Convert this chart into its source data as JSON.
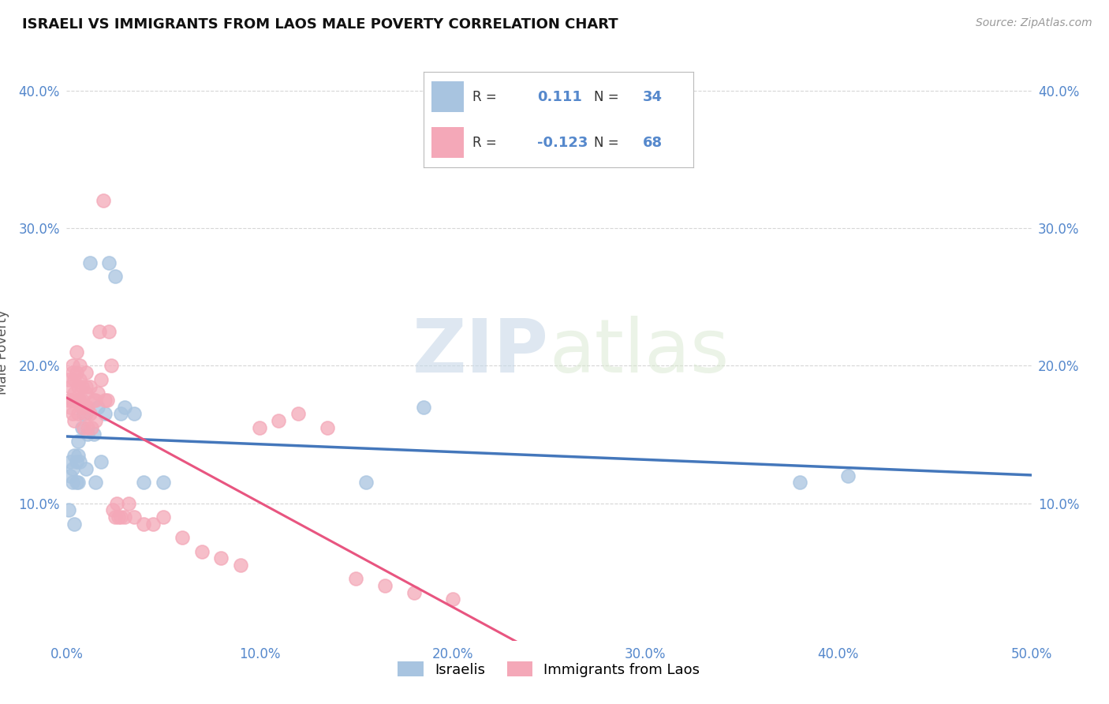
{
  "title": "ISRAELI VS IMMIGRANTS FROM LAOS MALE POVERTY CORRELATION CHART",
  "source": "Source: ZipAtlas.com",
  "ylabel": "Male Poverty",
  "xlim": [
    0.0,
    0.5
  ],
  "ylim": [
    0.0,
    0.42
  ],
  "xtick_labels": [
    "0.0%",
    "10.0%",
    "20.0%",
    "30.0%",
    "40.0%",
    "50.0%"
  ],
  "xtick_values": [
    0.0,
    0.1,
    0.2,
    0.3,
    0.4,
    0.5
  ],
  "ytick_labels": [
    "10.0%",
    "20.0%",
    "30.0%",
    "40.0%"
  ],
  "ytick_values": [
    0.1,
    0.2,
    0.3,
    0.4
  ],
  "legend_label1": "Israelis",
  "legend_label2": "Immigrants from Laos",
  "R1": 0.111,
  "N1": 34,
  "R2": -0.123,
  "N2": 68,
  "color_blue": "#A8C4E0",
  "color_pink": "#F4A8B8",
  "color_blue_line": "#4477BB",
  "color_pink_solid": "#E85580",
  "color_pink_dash": "#F4A8B8",
  "color_axis_tick": "#5588CC",
  "watermark_color": "#D5E5F0",
  "background_color": "#FFFFFF",
  "israelis_x": [
    0.001,
    0.002,
    0.002,
    0.003,
    0.003,
    0.004,
    0.004,
    0.005,
    0.005,
    0.006,
    0.006,
    0.006,
    0.007,
    0.008,
    0.009,
    0.01,
    0.011,
    0.012,
    0.014,
    0.015,
    0.016,
    0.018,
    0.02,
    0.022,
    0.025,
    0.028,
    0.03,
    0.035,
    0.04,
    0.05,
    0.155,
    0.185,
    0.38,
    0.405
  ],
  "israelis_y": [
    0.095,
    0.13,
    0.12,
    0.115,
    0.125,
    0.085,
    0.135,
    0.115,
    0.13,
    0.115,
    0.135,
    0.145,
    0.13,
    0.155,
    0.165,
    0.125,
    0.15,
    0.275,
    0.15,
    0.115,
    0.17,
    0.13,
    0.165,
    0.275,
    0.265,
    0.165,
    0.17,
    0.165,
    0.115,
    0.115,
    0.115,
    0.17,
    0.115,
    0.12
  ],
  "laos_x": [
    0.001,
    0.001,
    0.002,
    0.002,
    0.003,
    0.003,
    0.003,
    0.003,
    0.004,
    0.004,
    0.004,
    0.005,
    0.005,
    0.005,
    0.006,
    0.006,
    0.006,
    0.007,
    0.007,
    0.007,
    0.008,
    0.008,
    0.008,
    0.009,
    0.009,
    0.01,
    0.01,
    0.01,
    0.01,
    0.011,
    0.011,
    0.012,
    0.012,
    0.013,
    0.014,
    0.015,
    0.015,
    0.016,
    0.017,
    0.018,
    0.019,
    0.02,
    0.021,
    0.022,
    0.023,
    0.024,
    0.025,
    0.026,
    0.027,
    0.028,
    0.03,
    0.032,
    0.035,
    0.04,
    0.045,
    0.05,
    0.06,
    0.07,
    0.08,
    0.09,
    0.1,
    0.11,
    0.12,
    0.135,
    0.15,
    0.165,
    0.18,
    0.2
  ],
  "laos_y": [
    0.19,
    0.175,
    0.185,
    0.17,
    0.195,
    0.175,
    0.165,
    0.2,
    0.18,
    0.16,
    0.19,
    0.175,
    0.195,
    0.21,
    0.165,
    0.185,
    0.175,
    0.175,
    0.19,
    0.2,
    0.17,
    0.185,
    0.175,
    0.155,
    0.17,
    0.165,
    0.185,
    0.18,
    0.195,
    0.155,
    0.17,
    0.165,
    0.185,
    0.155,
    0.175,
    0.16,
    0.175,
    0.18,
    0.225,
    0.19,
    0.32,
    0.175,
    0.175,
    0.225,
    0.2,
    0.095,
    0.09,
    0.1,
    0.09,
    0.09,
    0.09,
    0.1,
    0.09,
    0.085,
    0.085,
    0.09,
    0.075,
    0.065,
    0.06,
    0.055,
    0.155,
    0.16,
    0.165,
    0.155,
    0.045,
    0.04,
    0.035,
    0.03
  ]
}
